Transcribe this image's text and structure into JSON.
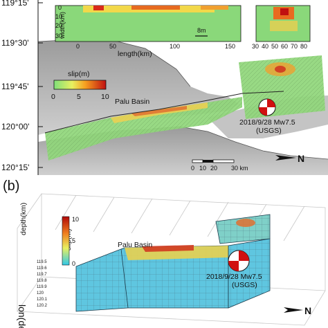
{
  "panel_a": {
    "latitude_ticks": [
      "119°15'",
      "119°30'",
      "119°45'",
      "120°00'",
      "120°15'"
    ],
    "inset_main": {
      "ylabel": "width(km)",
      "xlabel": "length(km)",
      "y_ticks": [
        "0",
        "10",
        "20",
        "30"
      ],
      "x_ticks": [
        "0",
        "50",
        "100",
        "150"
      ],
      "vector_scale": "8m"
    },
    "inset_small": {
      "x_ticks": [
        "30",
        "40",
        "50",
        "60",
        "70",
        "80"
      ]
    },
    "colorbar": {
      "title": "slip(m)",
      "ticks": [
        "0",
        "5",
        "10"
      ]
    },
    "basin_label": "Palu Basin",
    "event_label_line1": "2018/9/28 Mw7.5",
    "event_label_line2": "(USGS)",
    "scale_bar": {
      "ticks": [
        "0",
        "10",
        "20",
        "30 km"
      ]
    },
    "north_label": "N"
  },
  "panel_b": {
    "label": "(b)",
    "depth_axis": "depth(km)",
    "lon_axis": "lon(deg)",
    "lon_ticks": [
      "119.5",
      "119.6",
      "119.7",
      "119.8",
      "119.9",
      "120",
      "120.1",
      "120.2"
    ],
    "colorbar": {
      "title": "slip(m)",
      "ticks": [
        "0",
        "5",
        "10"
      ]
    },
    "basin_label": "Palu Basin",
    "event_label_line1": "2018/9/28 Mw7.5",
    "event_label_line2": "(USGS)",
    "north_label": "N"
  }
}
